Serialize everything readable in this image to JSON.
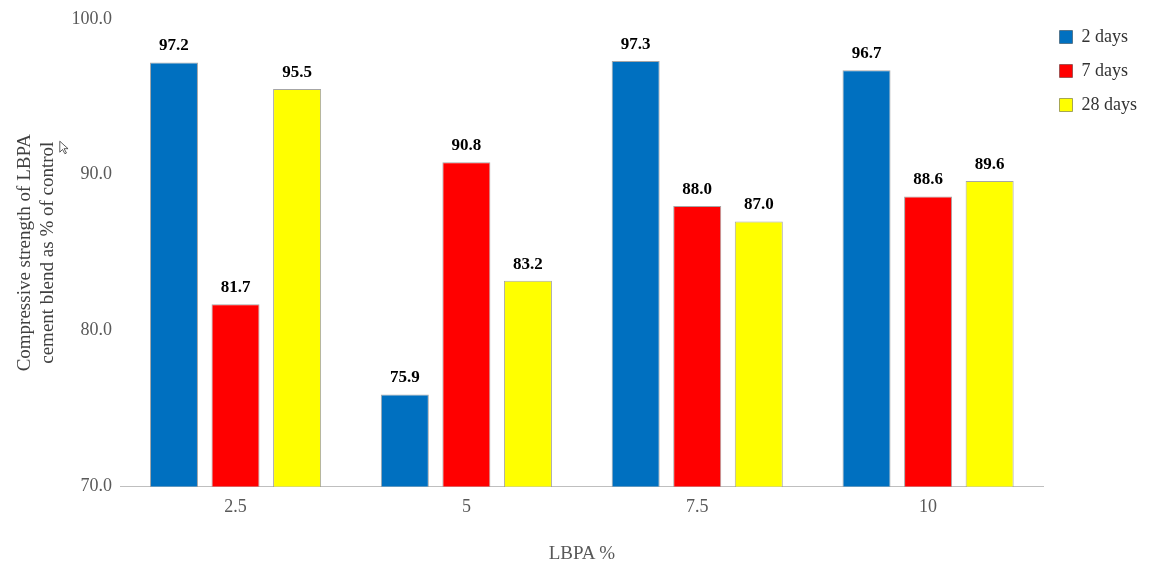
{
  "chart_data": {
    "type": "bar",
    "xlabel": "LBPA %",
    "ylabel": "Compressive strength of LBPA cement blend as % of control",
    "categories": [
      "2.5",
      "5",
      "7.5",
      "10"
    ],
    "series": [
      {
        "name": "2 days",
        "color": "#0070c0",
        "values": [
          97.2,
          75.9,
          97.3,
          96.7
        ],
        "value_labels": [
          "97.2",
          "75.9",
          "97.3",
          "96.7"
        ]
      },
      {
        "name": "7 days",
        "color": "#ff0000",
        "values": [
          81.7,
          90.8,
          88.0,
          88.6
        ],
        "value_labels": [
          "81.7",
          "90.8",
          "88.0",
          "88.6"
        ]
      },
      {
        "name": "28 days",
        "color": "#ffff00",
        "values": [
          95.5,
          83.2,
          87.0,
          89.6
        ],
        "value_labels": [
          "95.5",
          "83.2",
          "87.0",
          "89.6"
        ]
      }
    ],
    "ylim": [
      70,
      100
    ],
    "yticks": [
      {
        "value": 70,
        "label": "70.0"
      },
      {
        "value": 80,
        "label": "80.0"
      },
      {
        "value": 90,
        "label": "90.0"
      },
      {
        "value": 100,
        "label": "100.0"
      }
    ],
    "grid": false,
    "legend": "right"
  }
}
